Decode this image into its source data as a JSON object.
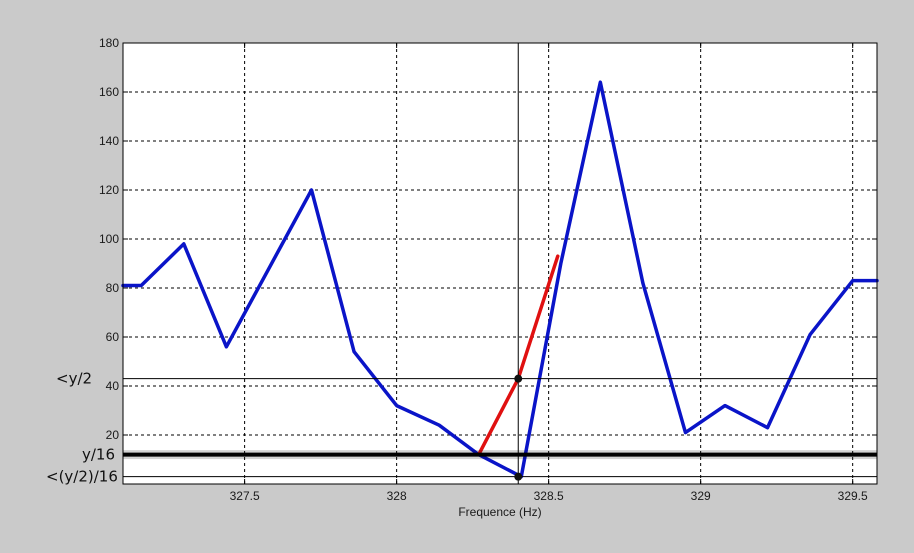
{
  "chart_data": {
    "type": "line",
    "title": "",
    "xlabel": "Frequence (Hz)",
    "ylabel": "",
    "xlim": [
      327.1,
      329.58
    ],
    "ylim": [
      0,
      180
    ],
    "grid": true,
    "x_ticks": [
      "327.5",
      "328",
      "328.5",
      "329",
      "329.5"
    ],
    "y_ticks": [
      "20",
      "40",
      "60",
      "80",
      "100",
      "120",
      "140",
      "160",
      "180"
    ],
    "series": [
      {
        "color": "#0a14c8",
        "x": [
          327.1,
          327.16,
          327.3,
          327.44,
          327.58,
          327.72,
          327.86,
          328.0,
          328.14,
          328.27,
          328.41,
          328.54,
          328.67,
          328.81,
          328.95,
          329.08,
          329.22,
          329.36,
          329.5,
          329.58
        ],
        "y": [
          81,
          81,
          98,
          56,
          88,
          120,
          54,
          32,
          24,
          12,
          3,
          90,
          164,
          82,
          21,
          32,
          23,
          61,
          83,
          83
        ]
      },
      {
        "color": "#e01010",
        "x": [
          328.27,
          328.4,
          328.53
        ],
        "y": [
          12,
          43,
          93
        ]
      }
    ],
    "annotations": {
      "vertical_line_x": 328.4,
      "lines": [
        {
          "label": "<y/2",
          "y": 43
        },
        {
          "label": "y/16",
          "y": 12
        },
        {
          "label": "<(y/2)/16",
          "y": 3
        }
      ],
      "markers": [
        {
          "x": 328.4,
          "y": 43
        },
        {
          "x": 328.4,
          "y": 3
        }
      ]
    }
  }
}
